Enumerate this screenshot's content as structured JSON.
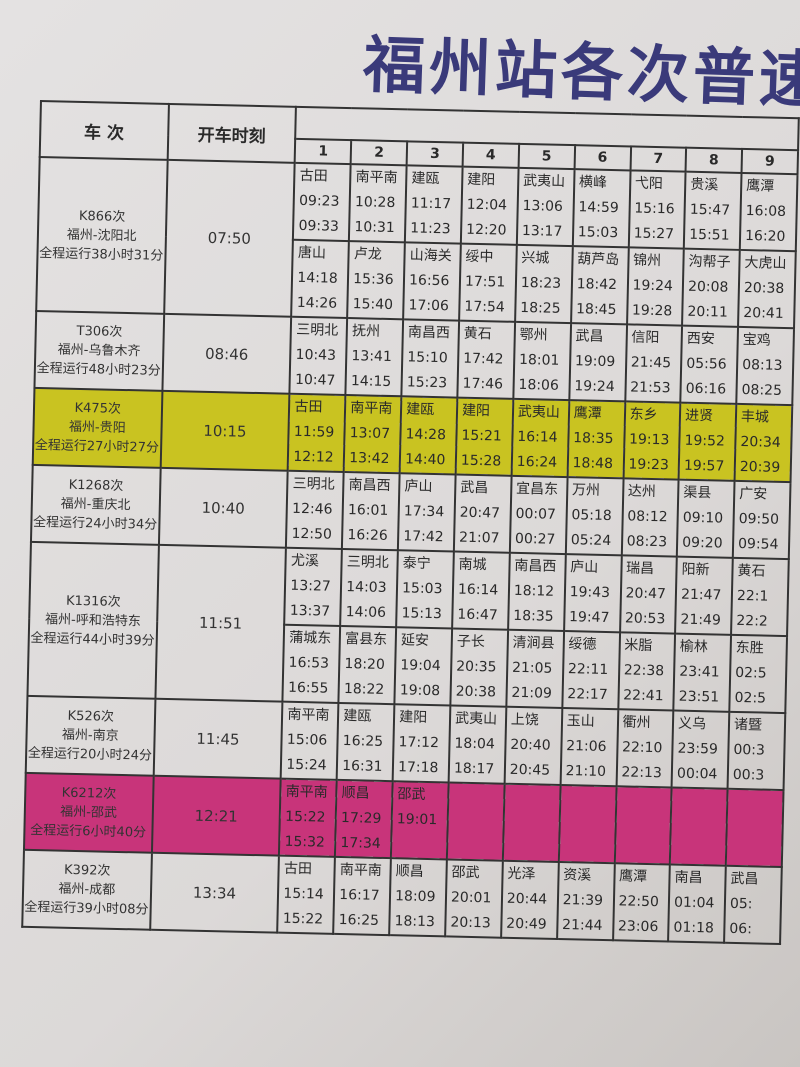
{
  "title": "福州站各次普速列车",
  "header": {
    "train_label": "车 次",
    "departure_label": "开车时刻",
    "stop_numbers": [
      "1",
      "2",
      "3",
      "4",
      "5",
      "6",
      "7",
      "8",
      "9"
    ]
  },
  "highlight_colors": {
    "yellow": "#c9c321",
    "pink": "#c8347a"
  },
  "trains": [
    {
      "number": "K866次",
      "route": "福州-沈阳北",
      "duration": "全程运行38小时31分",
      "departure": "07:50",
      "highlight": "",
      "stops": [
        [
          [
            "古田",
            "09:23",
            "09:33"
          ],
          [
            "南平南",
            "10:28",
            "10:31"
          ],
          [
            "建瓯",
            "11:17",
            "11:23"
          ],
          [
            "建阳",
            "12:04",
            "12:20"
          ],
          [
            "武夷山",
            "13:06",
            "13:17"
          ],
          [
            "横峰",
            "14:59",
            "15:03"
          ],
          [
            "弋阳",
            "15:16",
            "15:27"
          ],
          [
            "贵溪",
            "15:47",
            "15:51"
          ],
          [
            "鹰潭",
            "16:08",
            "16:20"
          ]
        ],
        [
          [
            "唐山",
            "14:18",
            "14:26"
          ],
          [
            "卢龙",
            "15:36",
            "15:40"
          ],
          [
            "山海关",
            "16:56",
            "17:06"
          ],
          [
            "绥中",
            "17:51",
            "17:54"
          ],
          [
            "兴城",
            "18:23",
            "18:25"
          ],
          [
            "葫芦岛",
            "18:42",
            "18:45"
          ],
          [
            "锦州",
            "19:24",
            "19:28"
          ],
          [
            "沟帮子",
            "20:08",
            "20:11"
          ],
          [
            "大虎山",
            "20:38",
            "20:41"
          ]
        ]
      ]
    },
    {
      "number": "T306次",
      "route": "福州-乌鲁木齐",
      "duration": "全程运行48小时23分",
      "departure": "08:46",
      "highlight": "",
      "stops": [
        [
          [
            "三明北",
            "10:43",
            "10:47"
          ],
          [
            "抚州",
            "13:41",
            "14:15"
          ],
          [
            "南昌西",
            "15:10",
            "15:23"
          ],
          [
            "黄石",
            "17:42",
            "17:46"
          ],
          [
            "鄂州",
            "18:01",
            "18:06"
          ],
          [
            "武昌",
            "19:09",
            "19:24"
          ],
          [
            "信阳",
            "21:45",
            "21:53"
          ],
          [
            "西安",
            "05:56",
            "06:16"
          ],
          [
            "宝鸡",
            "08:13",
            "08:25"
          ]
        ]
      ]
    },
    {
      "number": "K475次",
      "route": "福州-贵阳",
      "duration": "全程运行27小时27分",
      "departure": "10:15",
      "highlight": "yellow",
      "stops": [
        [
          [
            "古田",
            "11:59",
            "12:12"
          ],
          [
            "南平南",
            "13:07",
            "13:42"
          ],
          [
            "建瓯",
            "14:28",
            "14:40"
          ],
          [
            "建阳",
            "15:21",
            "15:28"
          ],
          [
            "武夷山",
            "16:14",
            "16:24"
          ],
          [
            "鹰潭",
            "18:35",
            "18:48"
          ],
          [
            "东乡",
            "19:13",
            "19:23"
          ],
          [
            "进贤",
            "19:52",
            "19:57"
          ],
          [
            "丰城",
            "20:34",
            "20:39"
          ]
        ]
      ]
    },
    {
      "number": "K1268次",
      "route": "福州-重庆北",
      "duration": "全程运行24小时34分",
      "departure": "10:40",
      "highlight": "",
      "stops": [
        [
          [
            "三明北",
            "12:46",
            "12:50"
          ],
          [
            "南昌西",
            "16:01",
            "16:26"
          ],
          [
            "庐山",
            "17:34",
            "17:42"
          ],
          [
            "武昌",
            "20:47",
            "21:07"
          ],
          [
            "宜昌东",
            "00:07",
            "00:27"
          ],
          [
            "万州",
            "05:18",
            "05:24"
          ],
          [
            "达州",
            "08:12",
            "08:23"
          ],
          [
            "渠县",
            "09:10",
            "09:20"
          ],
          [
            "广安",
            "09:50",
            "09:54"
          ]
        ]
      ]
    },
    {
      "number": "K1316次",
      "route": "福州-呼和浩特东",
      "duration": "全程运行44小时39分",
      "departure": "11:51",
      "highlight": "",
      "stops": [
        [
          [
            "尤溪",
            "13:27",
            "13:37"
          ],
          [
            "三明北",
            "14:03",
            "14:06"
          ],
          [
            "泰宁",
            "15:03",
            "15:13"
          ],
          [
            "南城",
            "16:14",
            "16:47"
          ],
          [
            "南昌西",
            "18:12",
            "18:35"
          ],
          [
            "庐山",
            "19:43",
            "19:47"
          ],
          [
            "瑞昌",
            "20:47",
            "20:53"
          ],
          [
            "阳新",
            "21:47",
            "21:49"
          ],
          [
            "黄石",
            "22:1",
            "22:2"
          ]
        ],
        [
          [
            "蒲城东",
            "16:53",
            "16:55"
          ],
          [
            "富县东",
            "18:20",
            "18:22"
          ],
          [
            "延安",
            "19:04",
            "19:08"
          ],
          [
            "子长",
            "20:35",
            "20:38"
          ],
          [
            "清涧县",
            "21:05",
            "21:09"
          ],
          [
            "绥德",
            "22:11",
            "22:17"
          ],
          [
            "米脂",
            "22:38",
            "22:41"
          ],
          [
            "榆林",
            "23:41",
            "23:51"
          ],
          [
            "东胜",
            "02:5",
            "02:5"
          ]
        ]
      ]
    },
    {
      "number": "K526次",
      "route": "福州-南京",
      "duration": "全程运行20小时24分",
      "departure": "11:45",
      "highlight": "",
      "stops": [
        [
          [
            "南平南",
            "15:06",
            "15:24"
          ],
          [
            "建瓯",
            "16:25",
            "16:31"
          ],
          [
            "建阳",
            "17:12",
            "17:18"
          ],
          [
            "武夷山",
            "18:04",
            "18:17"
          ],
          [
            "上饶",
            "20:40",
            "20:45"
          ],
          [
            "玉山",
            "21:06",
            "21:10"
          ],
          [
            "衢州",
            "22:10",
            "22:13"
          ],
          [
            "义乌",
            "23:59",
            "00:04"
          ],
          [
            "诸暨",
            "00:3",
            "00:3"
          ]
        ]
      ]
    },
    {
      "number": "K6212次",
      "route": "福州-邵武",
      "duration": "全程运行6小时40分",
      "departure": "12:21",
      "highlight": "pink",
      "stops": [
        [
          [
            "南平南",
            "15:22",
            "15:32"
          ],
          [
            "顺昌",
            "17:29",
            "17:34"
          ],
          [
            "邵武",
            "19:01",
            ""
          ],
          [
            "",
            "",
            ""
          ],
          [
            "",
            "",
            ""
          ],
          [
            "",
            "",
            ""
          ],
          [
            "",
            "",
            ""
          ],
          [
            "",
            "",
            ""
          ],
          [
            "",
            "",
            ""
          ]
        ]
      ]
    },
    {
      "number": "K392次",
      "route": "福州-成都",
      "duration": "全程运行39小时08分",
      "departure": "13:34",
      "highlight": "",
      "stops": [
        [
          [
            "古田",
            "15:14",
            "15:22"
          ],
          [
            "南平南",
            "16:17",
            "16:25"
          ],
          [
            "顺昌",
            "18:09",
            "18:13"
          ],
          [
            "邵武",
            "20:01",
            "20:13"
          ],
          [
            "光泽",
            "20:44",
            "20:49"
          ],
          [
            "资溪",
            "21:39",
            "21:44"
          ],
          [
            "鹰潭",
            "22:50",
            "23:06"
          ],
          [
            "南昌",
            "01:04",
            "01:18"
          ],
          [
            "武昌",
            "05:",
            "06:"
          ]
        ]
      ]
    }
  ]
}
